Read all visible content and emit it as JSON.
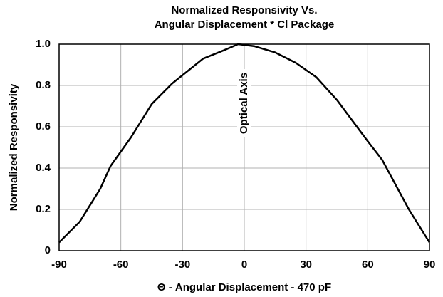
{
  "chart_data": {
    "type": "line",
    "title": [
      "Normalized Responsivity Vs.",
      "Angular Displacement * Cl Package"
    ],
    "xlabel": "Θ - Angular Displacement - 470 pF",
    "ylabel": "Normalized Responsivity",
    "annotation": "Optical Axis",
    "x": [
      -90,
      -80,
      -70,
      -65,
      -55,
      -45,
      -35,
      -20,
      -10,
      -3,
      5,
      15,
      25,
      35,
      45,
      60,
      67,
      80,
      90
    ],
    "series": [
      {
        "color": "#000000",
        "values": [
          0.04,
          0.14,
          0.3,
          0.41,
          0.55,
          0.71,
          0.81,
          0.93,
          0.97,
          1.0,
          0.99,
          0.96,
          0.91,
          0.84,
          0.73,
          0.53,
          0.44,
          0.2,
          0.04
        ]
      }
    ],
    "xlim": [
      -90,
      90
    ],
    "xticks": [
      -90,
      -60,
      -30,
      0,
      30,
      60,
      90
    ],
    "ylim": [
      0,
      1
    ],
    "yticks": [
      0,
      0.2,
      0.4,
      0.6,
      0.8,
      {
        "value": 1,
        "label": "1.0"
      }
    ],
    "grid": true
  }
}
